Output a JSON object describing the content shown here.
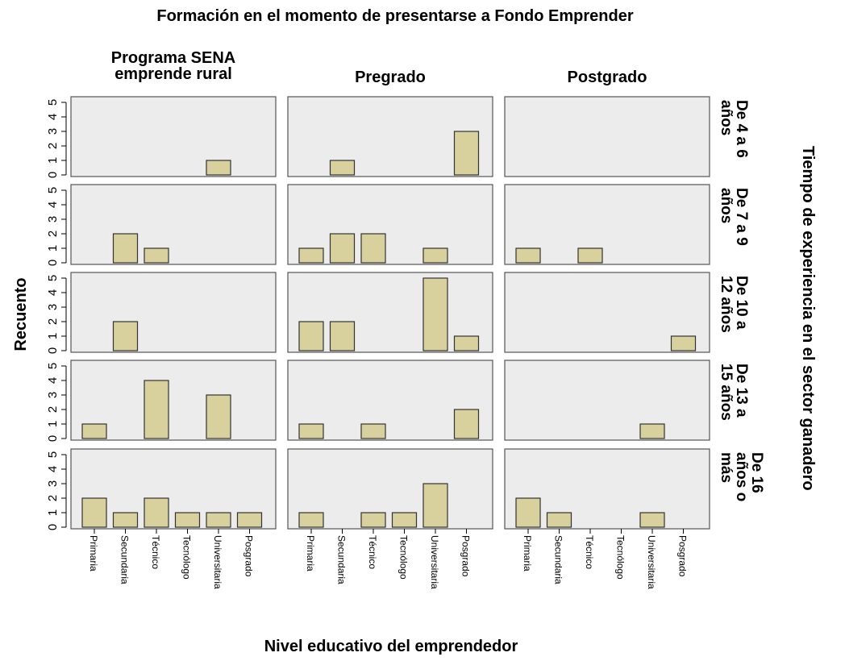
{
  "chart_data": {
    "type": "bar",
    "title": "Formación en el momento de presentarse a Fondo Emprender",
    "x_label": "Nivel educativo del emprendedor",
    "y_label": "Recuento",
    "row_title": "Tiempo de experiencia en el sector ganadero",
    "columns": [
      "Programa SENA emprende rural",
      "Pregrado",
      "Postgrado"
    ],
    "rows": [
      "De 4 a 6 años",
      "De 7 a 9 años",
      "De 10 a 12 años",
      "De 13 a 15 años",
      "De 16 años o más"
    ],
    "categories": [
      "Primaria",
      "Secundaria",
      "Técnico",
      "Tecnólogo",
      "Universitaria",
      "Posgrado"
    ],
    "ylim": [
      0,
      5
    ],
    "yticks": [
      0,
      1,
      2,
      3,
      4,
      5
    ],
    "color": "#d8d19d",
    "panels": [
      [
        [
          0,
          0,
          0,
          0,
          1,
          0
        ],
        [
          0,
          1,
          0,
          0,
          0,
          3
        ],
        [
          0,
          0,
          0,
          0,
          0,
          0
        ]
      ],
      [
        [
          0,
          2,
          1,
          0,
          0,
          0
        ],
        [
          1,
          2,
          2,
          0,
          1,
          0
        ],
        [
          1,
          0,
          1,
          0,
          0,
          0
        ]
      ],
      [
        [
          0,
          2,
          0,
          0,
          0,
          0
        ],
        [
          2,
          2,
          0,
          0,
          5,
          1
        ],
        [
          0,
          0,
          0,
          0,
          0,
          1
        ]
      ],
      [
        [
          1,
          0,
          4,
          0,
          3,
          0
        ],
        [
          1,
          0,
          1,
          0,
          0,
          2
        ],
        [
          0,
          0,
          0,
          0,
          1,
          0
        ]
      ],
      [
        [
          2,
          1,
          2,
          1,
          1,
          1
        ],
        [
          1,
          0,
          1,
          1,
          3,
          0
        ],
        [
          2,
          1,
          0,
          0,
          1,
          0
        ]
      ]
    ]
  }
}
